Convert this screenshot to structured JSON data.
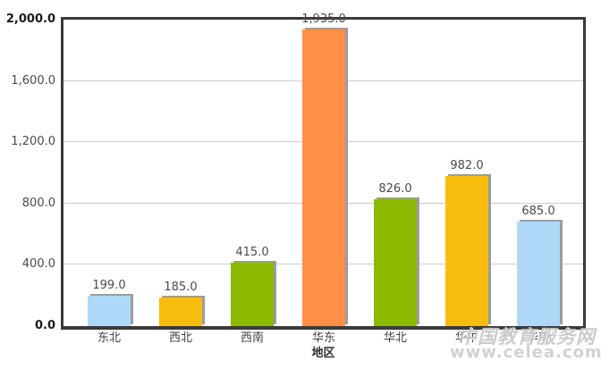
{
  "chart_data": {
    "type": "bar",
    "categories": [
      "东北",
      "西北",
      "西南",
      "华东",
      "华北",
      "华中",
      "华南"
    ],
    "values": [
      199.0,
      185.0,
      415.0,
      1935.0,
      826.0,
      982.0,
      685.0
    ],
    "value_labels": [
      "199.0",
      "185.0",
      "415.0",
      "1,935.0",
      "826.0",
      "982.0",
      "685.0"
    ],
    "bar_colors": [
      "#AFD8F8",
      "#F6BD0F",
      "#8BBA00",
      "#FF8E46",
      "#8BBA00",
      "#F6BD0F",
      "#AFD8F8"
    ],
    "title": "",
    "xlabel": "地区",
    "ylabel": "",
    "ylim": [
      0,
      2000
    ],
    "ytick_values": [
      0,
      400,
      800,
      1200,
      1600,
      2000
    ],
    "ytick_labels": [
      "0.0",
      "400.0",
      "800.0",
      "1,200.0",
      "1,600.0",
      "2,000.0"
    ],
    "grid": true,
    "legend": "none",
    "colors": {
      "grid_line": "#cccccc",
      "plot_border": "#3a3a3a",
      "bar_shadow": "#9c9c9c",
      "label_text": "#4a4a4a",
      "watermark_text": "#c9c9c9"
    }
  },
  "watermark": {
    "line1": "中国教育服务网",
    "line2": "www.celea.com"
  }
}
